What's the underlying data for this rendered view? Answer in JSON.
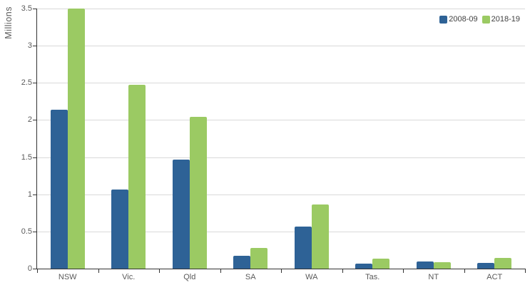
{
  "chart_data": {
    "type": "bar",
    "title": "",
    "xlabel": "",
    "ylabel": "Millions",
    "categories": [
      "NSW",
      "Vic.",
      "Qld",
      "SA",
      "WA",
      "Tas.",
      "NT",
      "ACT"
    ],
    "series": [
      {
        "name": "2008-09",
        "color": "#2e6296",
        "values": [
          2.14,
          1.06,
          1.47,
          0.17,
          0.57,
          0.07,
          0.1,
          0.08
        ]
      },
      {
        "name": "2018-19",
        "color": "#9bca63",
        "values": [
          3.5,
          2.47,
          2.04,
          0.28,
          0.86,
          0.13,
          0.09,
          0.14
        ]
      }
    ],
    "ylim": [
      0,
      3.5
    ],
    "yticks": [
      0,
      0.5,
      1,
      1.5,
      2,
      2.5,
      3,
      3.5
    ],
    "ytick_labels": [
      "0",
      "0.5",
      "1",
      "1.5",
      "2",
      "2.5",
      "3",
      "3.5"
    ],
    "grid": true,
    "legend_position": "top-right"
  },
  "colors": {
    "background": "#ffffff",
    "gridline": "#d9d9d9",
    "axis": "#333333",
    "tick_label": "#595959",
    "legend_text": "#404040"
  }
}
